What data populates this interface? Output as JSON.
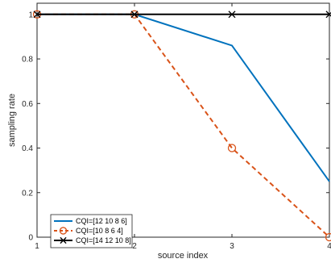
{
  "chart_data": {
    "type": "line",
    "title": "",
    "xlabel": "source index",
    "ylabel": "sampling rate",
    "xlim": [
      1,
      4
    ],
    "ylim": [
      0,
      1.05
    ],
    "x_ticks": [
      1,
      2,
      3,
      4
    ],
    "y_ticks": [
      0,
      0.2,
      0.4,
      0.6,
      0.8,
      1
    ],
    "x_tick_labels": [
      "1",
      "2",
      "3",
      "4"
    ],
    "y_tick_labels": [
      "0",
      "0.2",
      "0.4",
      "0.6",
      "0.8",
      "1"
    ],
    "grid": false,
    "legend_position": "bottom-left",
    "series": [
      {
        "name": "CQI=[12 10 8 6]",
        "x": [
          1,
          2,
          3,
          4
        ],
        "values": [
          1,
          1,
          0.86,
          0.25
        ],
        "color": "#0072BD",
        "line_style": "solid",
        "marker": "none"
      },
      {
        "name": "CQI=[10 8 6 4]",
        "x": [
          1,
          2,
          3,
          4
        ],
        "values": [
          1,
          1,
          0.4,
          0
        ],
        "color": "#D95319",
        "line_style": "dashed",
        "marker": "circle"
      },
      {
        "name": "CQI=[14 12 10 8]",
        "x": [
          1,
          2,
          3,
          4
        ],
        "values": [
          1,
          1,
          1,
          1
        ],
        "color": "#000000",
        "line_style": "solid",
        "marker": "x"
      }
    ]
  }
}
